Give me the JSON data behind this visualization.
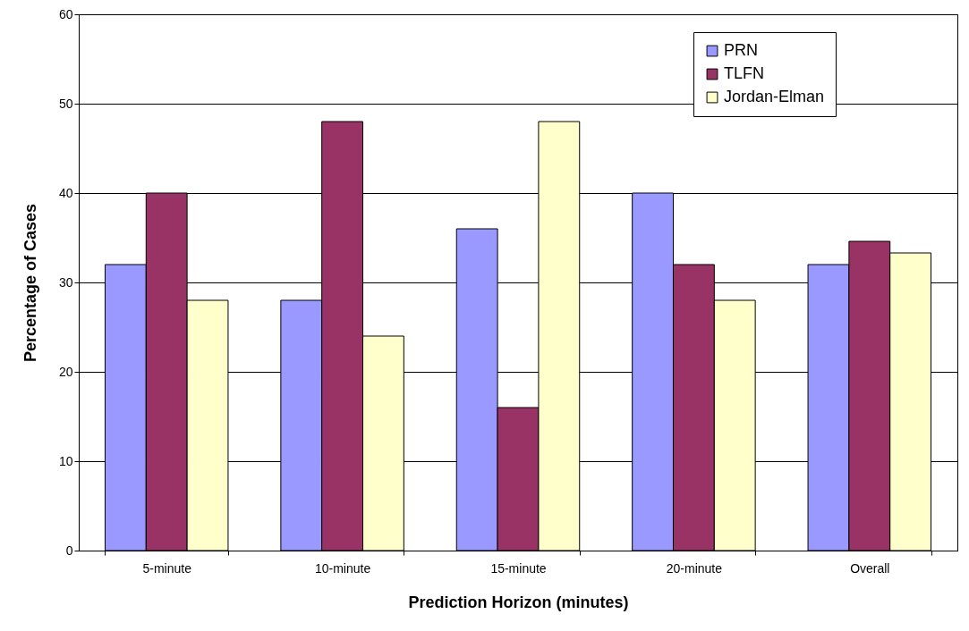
{
  "chart_data": {
    "type": "bar",
    "xlabel": "Prediction Horizon (minutes)",
    "ylabel": "Percentage of Cases",
    "categories": [
      "5-minute",
      "10-minute",
      "15-minute",
      "20-minute",
      "Overall"
    ],
    "series": [
      {
        "name": "PRN",
        "color": "#9999ff",
        "values": [
          32,
          28,
          36,
          40,
          32
        ]
      },
      {
        "name": "TLFN",
        "color": "#993366",
        "values": [
          40,
          48,
          16,
          32,
          34.6
        ]
      },
      {
        "name": "Jordan-Elman",
        "color": "#ffffcc",
        "values": [
          28,
          24,
          48,
          28,
          33.3
        ]
      }
    ],
    "ylim": [
      0,
      60
    ],
    "yticks": [
      0,
      10,
      20,
      30,
      40,
      50,
      60
    ],
    "grid": "y",
    "legend": "top right"
  }
}
